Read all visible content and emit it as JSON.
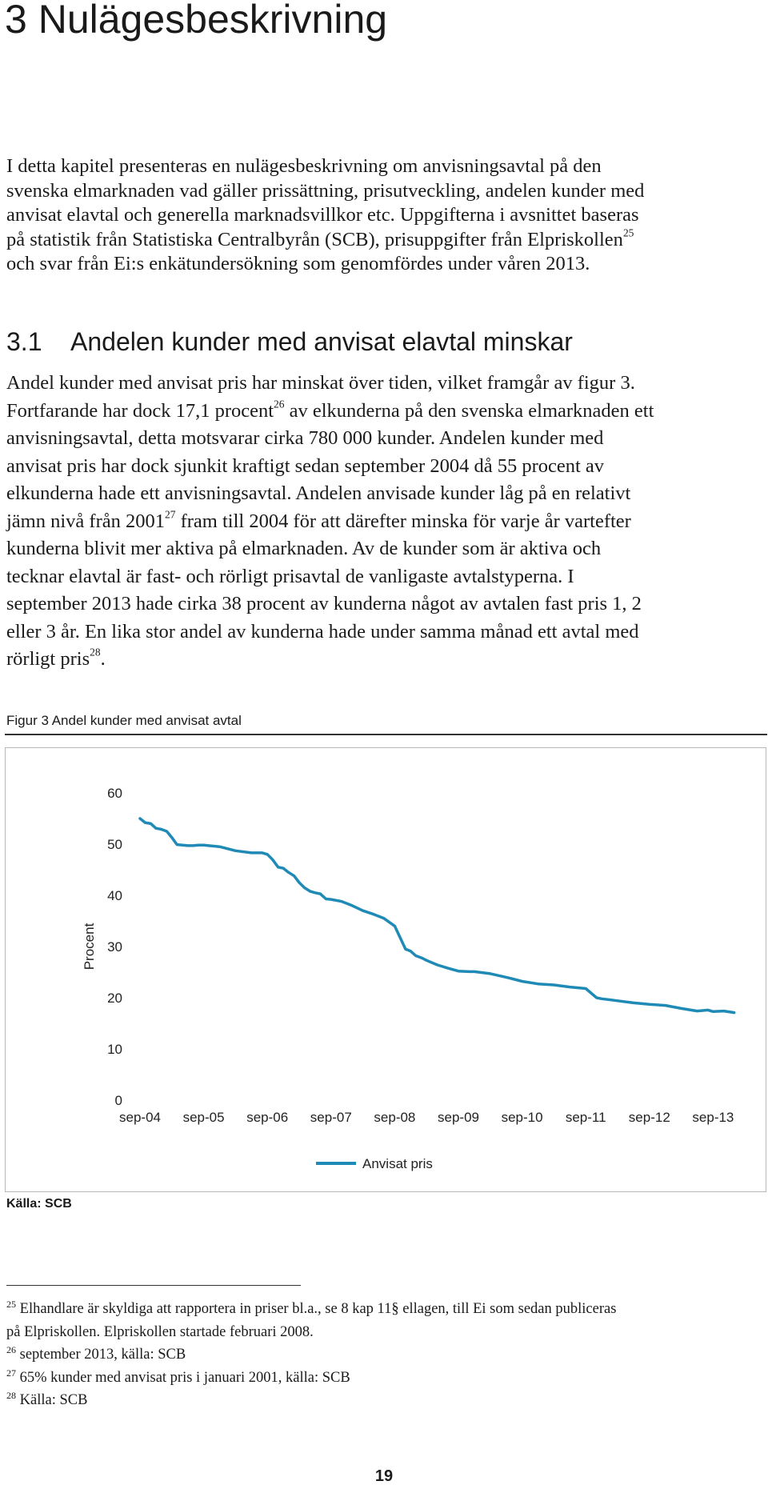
{
  "heading": {
    "number": "3",
    "title": "Nulägesbeskrivning"
  },
  "intro_lines": [
    "I detta kapitel presenteras en nulägesbeskrivning om anvisningsavtal på den",
    "svenska elmarknaden vad gäller prissättning, prisutveckling, andelen kunder med",
    "anvisat elavtal och generella marknadsvillkor etc. Uppgifterna i avsnittet baseras",
    "på statistik från Statistiska Centralbyrån (SCB), prisuppgifter från Elpriskollen",
    "och svar från Ei:s enkätundersökning som genomfördes under våren 2013."
  ],
  "intro_fn_ref": "25",
  "section": {
    "number": "3.1",
    "title": "Andelen kunder med anvisat elavtal minskar"
  },
  "para": {
    "l1": "Andel kunder med anvisat pris har minskat över tiden, vilket framgår av figur 3.",
    "l2a": "Fortfarande har dock 17,1 procent",
    "ref26": "26",
    "l2b": " av elkunderna på den svenska elmarknaden ett",
    "l3": "anvisningsavtal, detta motsvarar cirka 780 000 kunder. Andelen kunder med",
    "l4": "anvisat pris har dock sjunkit kraftigt sedan september 2004 då 55 procent av",
    "l5": "elkunderna hade ett anvisningsavtal. Andelen anvisade kunder låg på en relativt",
    "l6a": "jämn nivå från 2001",
    "ref27": "27",
    "l6b": " fram till 2004 för att därefter minska för varje år vartefter",
    "l7": "kunderna blivit mer aktiva på elmarknaden. Av de kunder som är aktiva och",
    "l8": "tecknar elavtal är fast- och rörligt prisavtal de vanligaste avtalstyperna. I",
    "l9": "september 2013 hade cirka 38 procent av kunderna något av avtalen fast pris 1, 2",
    "l10": "eller 3 år. En lika stor andel av kunderna hade under samma månad ett avtal med",
    "l11a": "rörligt pris",
    "ref28": "28",
    "l11b": "."
  },
  "figure": {
    "caption": "Figur 3 Andel kunder med anvisat avtal",
    "source": "Källa: SCB"
  },
  "chart_data": {
    "type": "line",
    "ylabel": "Procent",
    "xlabel": "",
    "ylim": [
      0,
      60
    ],
    "yticks": [
      "0",
      "10",
      "20",
      "30",
      "40",
      "50",
      "60"
    ],
    "xticks": [
      "sep-04",
      "sep-05",
      "sep-06",
      "sep-07",
      "sep-08",
      "sep-09",
      "sep-10",
      "sep-11",
      "sep-12",
      "sep-13"
    ],
    "legend_position": "bottom",
    "grid": false,
    "series": [
      {
        "name": "Anvisat pris",
        "color": "#1f8ab5",
        "x": [
          0,
          0.08,
          0.17,
          0.25,
          0.33,
          0.42,
          0.5,
          0.58,
          0.67,
          0.75,
          0.83,
          0.92,
          1,
          1.25,
          1.5,
          1.75,
          1.92,
          2,
          2.08,
          2.17,
          2.25,
          2.33,
          2.42,
          2.5,
          2.58,
          2.67,
          2.75,
          2.83,
          2.92,
          3,
          3.17,
          3.33,
          3.5,
          3.67,
          3.83,
          4,
          4.17,
          4.25,
          4.33,
          4.42,
          4.5,
          4.67,
          4.83,
          5,
          5.17,
          5.25,
          5.5,
          5.75,
          6,
          6.25,
          6.5,
          6.75,
          7,
          7.17,
          7.25,
          7.5,
          7.75,
          8,
          8.25,
          8.5,
          8.75,
          8.92,
          9,
          9.17,
          9.33
        ],
        "values": [
          55,
          54.2,
          54,
          53.1,
          52.9,
          52.5,
          51.3,
          49.9,
          49.8,
          49.7,
          49.7,
          49.8,
          49.8,
          49.5,
          48.7,
          48.3,
          48.3,
          48.0,
          47.0,
          45.5,
          45.3,
          44.5,
          43.8,
          42.5,
          41.5,
          40.8,
          40.5,
          40.3,
          39.3,
          39.2,
          38.8,
          38.0,
          37.0,
          36.3,
          35.5,
          34.0,
          29.5,
          29.1,
          28.2,
          27.8,
          27.3,
          26.4,
          25.8,
          25.2,
          25.1,
          25.1,
          24.7,
          24.0,
          23.2,
          22.7,
          22.5,
          22.1,
          21.8,
          20.0,
          19.8,
          19.4,
          19.0,
          18.7,
          18.5,
          17.9,
          17.4,
          17.6,
          17.3,
          17.4,
          17.1
        ]
      }
    ]
  },
  "footnotes": [
    {
      "num": "25",
      "text": "Elhandlare är skyldiga att rapportera in priser bl.a., se 8 kap 11§ ellagen, till Ei som sedan publiceras"
    },
    {
      "num": "",
      "text": "på Elpriskollen. Elpriskollen startade februari 2008."
    },
    {
      "num": "26",
      "text": "september 2013, källa: SCB"
    },
    {
      "num": "27",
      "text": "65% kunder med anvisat pris i januari 2001, källa: SCB"
    },
    {
      "num": "28",
      "text": "Källa: SCB"
    }
  ],
  "page_number": "19"
}
